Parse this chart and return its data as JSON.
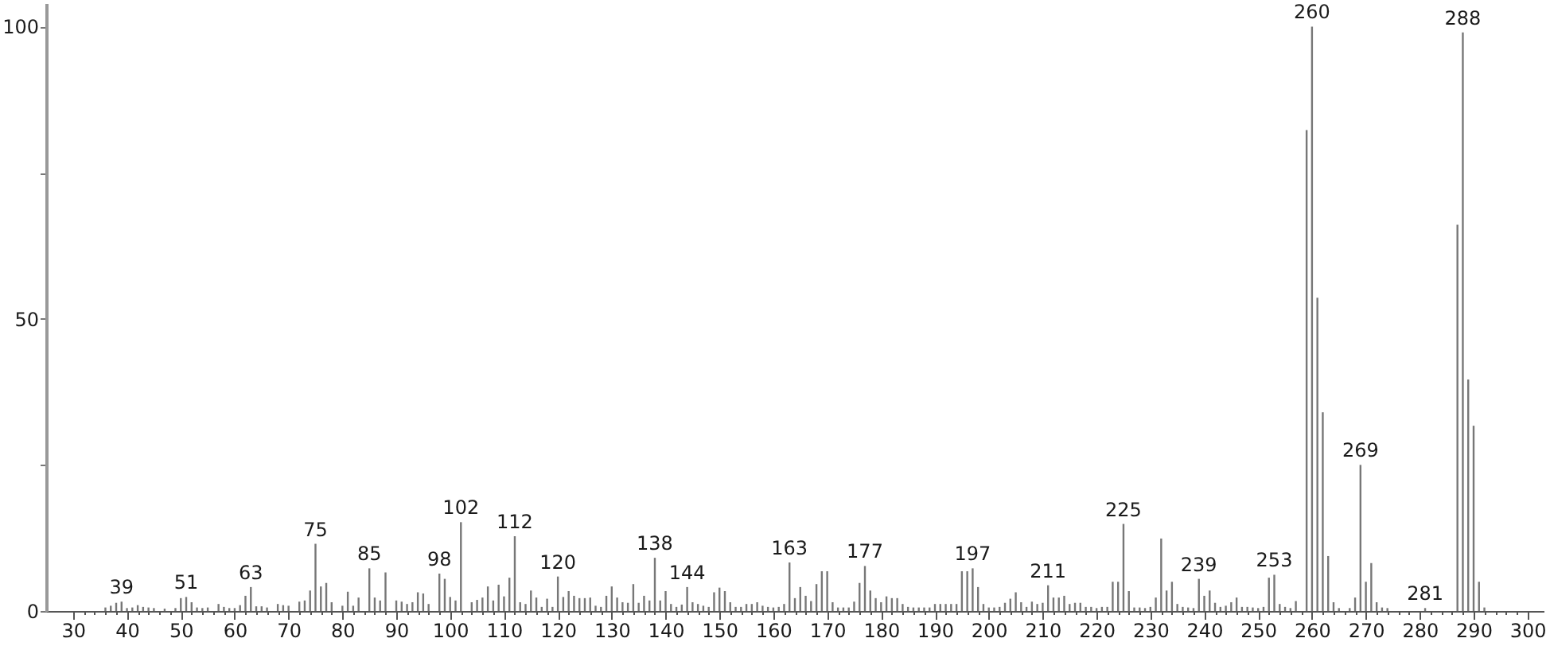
{
  "chart_data": {
    "type": "bar",
    "color": "#777777",
    "x": [
      36,
      37,
      38,
      39,
      40,
      41,
      42,
      43,
      44,
      45,
      47,
      49,
      50,
      51,
      52,
      53,
      54,
      55,
      57,
      58,
      59,
      60,
      61,
      62,
      63,
      64,
      65,
      66,
      68,
      69,
      70,
      72,
      73,
      74,
      75,
      76,
      77,
      78,
      80,
      81,
      82,
      83,
      85,
      86,
      87,
      88,
      90,
      91,
      92,
      93,
      94,
      95,
      96,
      98,
      99,
      100,
      101,
      102,
      104,
      105,
      106,
      107,
      108,
      109,
      110,
      111,
      112,
      113,
      114,
      115,
      116,
      117,
      118,
      119,
      120,
      121,
      122,
      123,
      124,
      125,
      126,
      127,
      128,
      129,
      130,
      131,
      132,
      133,
      134,
      135,
      136,
      137,
      138,
      139,
      140,
      141,
      142,
      143,
      144,
      145,
      146,
      147,
      148,
      149,
      150,
      151,
      152,
      153,
      154,
      155,
      156,
      157,
      158,
      159,
      160,
      161,
      162,
      163,
      164,
      165,
      166,
      167,
      168,
      169,
      170,
      171,
      172,
      173,
      174,
      175,
      176,
      177,
      178,
      179,
      180,
      181,
      182,
      183,
      184,
      185,
      186,
      187,
      188,
      189,
      190,
      191,
      192,
      193,
      194,
      195,
      196,
      197,
      198,
      199,
      200,
      201,
      202,
      203,
      204,
      205,
      206,
      207,
      208,
      209,
      210,
      211,
      212,
      213,
      214,
      215,
      216,
      217,
      218,
      219,
      220,
      221,
      222,
      223,
      224,
      225,
      226,
      227,
      228,
      229,
      230,
      231,
      232,
      233,
      234,
      235,
      236,
      237,
      238,
      239,
      240,
      241,
      242,
      243,
      244,
      245,
      246,
      247,
      248,
      249,
      250,
      251,
      252,
      253,
      254,
      255,
      256,
      257,
      259,
      260,
      261,
      262,
      263,
      264,
      265,
      267,
      268,
      269,
      270,
      271,
      272,
      273,
      274,
      281,
      287,
      288,
      289,
      290,
      291,
      292
    ],
    "values": [
      0.6,
      0.9,
      1.4,
      1.6,
      0.5,
      0.6,
      1.0,
      0.7,
      0.6,
      0.5,
      0.4,
      0.5,
      2.2,
      2.4,
      1.5,
      0.6,
      0.5,
      0.6,
      1.2,
      0.7,
      0.5,
      0.5,
      1.0,
      2.6,
      4.1,
      0.8,
      0.8,
      0.6,
      1.2,
      1.0,
      0.9,
      1.6,
      1.8,
      3.5,
      11.5,
      4.2,
      4.8,
      1.5,
      0.9,
      3.3,
      0.9,
      2.3,
      7.3,
      2.3,
      1.8,
      6.6,
      1.8,
      1.6,
      1.2,
      1.5,
      3.2,
      3.0,
      1.2,
      6.4,
      5.5,
      2.4,
      1.8,
      15.2,
      1.5,
      1.9,
      2.3,
      4.2,
      1.8,
      4.5,
      2.5,
      5.7,
      12.8,
      1.5,
      1.2,
      3.5,
      2.3,
      0.7,
      2.1,
      0.7,
      5.9,
      2.4,
      3.4,
      2.6,
      2.2,
      2.2,
      2.3,
      0.9,
      0.7,
      2.6,
      4.2,
      2.3,
      1.5,
      1.4,
      4.6,
      1.4,
      2.6,
      1.8,
      9.1,
      1.8,
      3.4,
      1.2,
      0.7,
      1.1,
      4.1,
      1.5,
      1.2,
      0.9,
      0.7,
      3.2,
      4.0,
      3.4,
      1.5,
      0.7,
      0.7,
      1.2,
      1.2,
      1.5,
      0.9,
      0.7,
      0.6,
      0.7,
      1.2,
      8.3,
      2.2,
      4.1,
      2.6,
      1.7,
      4.6,
      6.8,
      6.8,
      1.5,
      0.6,
      0.6,
      0.6,
      1.6,
      4.8,
      7.7,
      3.5,
      2.2,
      1.5,
      2.5,
      2.2,
      2.2,
      1.2,
      0.7,
      0.6,
      0.6,
      0.6,
      0.6,
      1.2,
      1.2,
      1.2,
      1.2,
      1.2,
      6.8,
      6.8,
      7.3,
      4.1,
      1.2,
      0.6,
      0.6,
      0.7,
      1.4,
      2.1,
      3.2,
      1.5,
      0.7,
      1.6,
      1.2,
      1.4,
      4.4,
      2.3,
      2.3,
      2.6,
      1.2,
      1.4,
      1.4,
      0.7,
      0.7,
      0.5,
      0.7,
      0.7,
      5.0,
      5.0,
      14.9,
      3.4,
      0.6,
      0.6,
      0.5,
      0.7,
      2.3,
      12.4,
      3.5,
      5.0,
      1.2,
      0.7,
      0.6,
      0.5,
      5.5,
      2.6,
      3.5,
      1.4,
      0.7,
      0.9,
      1.5,
      2.3,
      0.7,
      0.7,
      0.6,
      0.5,
      0.7,
      5.7,
      6.2,
      1.2,
      0.7,
      0.5,
      1.7,
      82.3,
      100,
      53.6,
      34.0,
      9.4,
      1.5,
      0.5,
      0.5,
      2.3,
      25.0,
      5.0,
      8.2,
      1.5,
      0.6,
      0.5,
      0.5,
      66.1,
      99.0,
      39.6,
      31.7,
      5.0,
      0.6
    ],
    "annotations": [
      {
        "text": "39",
        "x": 39,
        "y": 1.6
      },
      {
        "text": "51",
        "x": 51,
        "y": 2.4
      },
      {
        "text": "63",
        "x": 63,
        "y": 4.1
      },
      {
        "text": "75",
        "x": 75,
        "y": 11.5
      },
      {
        "text": "85",
        "x": 85,
        "y": 7.3
      },
      {
        "text": "98",
        "x": 98,
        "y": 6.4
      },
      {
        "text": "102",
        "x": 102,
        "y": 15.2
      },
      {
        "text": "112",
        "x": 112,
        "y": 12.8
      },
      {
        "text": "120",
        "x": 120,
        "y": 5.9
      },
      {
        "text": "138",
        "x": 138,
        "y": 9.1
      },
      {
        "text": "144",
        "x": 144,
        "y": 4.1
      },
      {
        "text": "163",
        "x": 163,
        "y": 8.3
      },
      {
        "text": "177",
        "x": 177,
        "y": 7.7
      },
      {
        "text": "197",
        "x": 197,
        "y": 7.3
      },
      {
        "text": "211",
        "x": 211,
        "y": 4.4
      },
      {
        "text": "225",
        "x": 225,
        "y": 14.9
      },
      {
        "text": "239",
        "x": 239,
        "y": 5.5
      },
      {
        "text": "253",
        "x": 253,
        "y": 6.2
      },
      {
        "text": "260",
        "x": 260,
        "y": 100
      },
      {
        "text": "269",
        "x": 269,
        "y": 25.0
      },
      {
        "text": "281",
        "x": 281,
        "y": 0.5
      },
      {
        "text": "288",
        "x": 288,
        "y": 99.0
      }
    ],
    "xlim": [
      25,
      303
    ],
    "ylim": [
      0,
      104
    ],
    "xticks": [
      30,
      {
        "value": 32,
        "label": null
      },
      {
        "value": 34,
        "label": null
      },
      {
        "value": 36,
        "label": null
      },
      {
        "value": 38,
        "label": null
      },
      40,
      {
        "value": 42,
        "label": null
      },
      {
        "value": 44,
        "label": null
      },
      {
        "value": 46,
        "label": null
      },
      {
        "value": 48,
        "label": null
      },
      50,
      {
        "value": 52,
        "label": null
      },
      {
        "value": 54,
        "label": null
      },
      {
        "value": 56,
        "label": null
      },
      {
        "value": 58,
        "label": null
      },
      60,
      {
        "value": 62,
        "label": null
      },
      {
        "value": 64,
        "label": null
      },
      {
        "value": 66,
        "label": null
      },
      {
        "value": 68,
        "label": null
      },
      70,
      {
        "value": 72,
        "label": null
      },
      {
        "value": 74,
        "label": null
      },
      {
        "value": 76,
        "label": null
      },
      {
        "value": 78,
        "label": null
      },
      80,
      {
        "value": 82,
        "label": null
      },
      {
        "value": 84,
        "label": null
      },
      {
        "value": 86,
        "label": null
      },
      {
        "value": 88,
        "label": null
      },
      90,
      {
        "value": 92,
        "label": null
      },
      {
        "value": 94,
        "label": null
      },
      {
        "value": 96,
        "label": null
      },
      {
        "value": 98,
        "label": null
      },
      100,
      {
        "value": 102,
        "label": null
      },
      {
        "value": 104,
        "label": null
      },
      {
        "value": 106,
        "label": null
      },
      {
        "value": 108,
        "label": null
      },
      110,
      {
        "value": 112,
        "label": null
      },
      {
        "value": 114,
        "label": null
      },
      {
        "value": 116,
        "label": null
      },
      {
        "value": 118,
        "label": null
      },
      120,
      {
        "value": 122,
        "label": null
      },
      {
        "value": 124,
        "label": null
      },
      {
        "value": 126,
        "label": null
      },
      {
        "value": 128,
        "label": null
      },
      130,
      {
        "value": 132,
        "label": null
      },
      {
        "value": 134,
        "label": null
      },
      {
        "value": 136,
        "label": null
      },
      {
        "value": 138,
        "label": null
      },
      140,
      {
        "value": 142,
        "label": null
      },
      {
        "value": 144,
        "label": null
      },
      {
        "value": 146,
        "label": null
      },
      {
        "value": 148,
        "label": null
      },
      150,
      {
        "value": 152,
        "label": null
      },
      {
        "value": 154,
        "label": null
      },
      {
        "value": 156,
        "label": null
      },
      {
        "value": 158,
        "label": null
      },
      160,
      {
        "value": 162,
        "label": null
      },
      {
        "value": 164,
        "label": null
      },
      {
        "value": 166,
        "label": null
      },
      {
        "value": 168,
        "label": null
      },
      170,
      {
        "value": 172,
        "label": null
      },
      {
        "value": 174,
        "label": null
      },
      {
        "value": 176,
        "label": null
      },
      {
        "value": 178,
        "label": null
      },
      180,
      {
        "value": 182,
        "label": null
      },
      {
        "value": 184,
        "label": null
      },
      {
        "value": 186,
        "label": null
      },
      {
        "value": 188,
        "label": null
      },
      190,
      {
        "value": 192,
        "label": null
      },
      {
        "value": 194,
        "label": null
      },
      {
        "value": 196,
        "label": null
      },
      {
        "value": 198,
        "label": null
      },
      200,
      {
        "value": 202,
        "label": null
      },
      {
        "value": 204,
        "label": null
      },
      {
        "value": 206,
        "label": null
      },
      {
        "value": 208,
        "label": null
      },
      210,
      {
        "value": 212,
        "label": null
      },
      {
        "value": 214,
        "label": null
      },
      {
        "value": 216,
        "label": null
      },
      {
        "value": 218,
        "label": null
      },
      220,
      {
        "value": 222,
        "label": null
      },
      {
        "value": 224,
        "label": null
      },
      {
        "value": 226,
        "label": null
      },
      {
        "value": 228,
        "label": null
      },
      230,
      {
        "value": 232,
        "label": null
      },
      {
        "value": 234,
        "label": null
      },
      {
        "value": 236,
        "label": null
      },
      {
        "value": 238,
        "label": null
      },
      240,
      {
        "value": 242,
        "label": null
      },
      {
        "value": 244,
        "label": null
      },
      {
        "value": 246,
        "label": null
      },
      {
        "value": 248,
        "label": null
      },
      250,
      {
        "value": 252,
        "label": null
      },
      {
        "value": 254,
        "label": null
      },
      {
        "value": 256,
        "label": null
      },
      {
        "value": 258,
        "label": null
      },
      260,
      {
        "value": 262,
        "label": null
      },
      {
        "value": 264,
        "label": null
      },
      {
        "value": 266,
        "label": null
      },
      {
        "value": 268,
        "label": null
      },
      270,
      {
        "value": 272,
        "label": null
      },
      {
        "value": 274,
        "label": null
      },
      {
        "value": 276,
        "label": null
      },
      {
        "value": 278,
        "label": null
      },
      280,
      {
        "value": 282,
        "label": null
      },
      {
        "value": 284,
        "label": null
      },
      {
        "value": 286,
        "label": null
      },
      {
        "value": 288,
        "label": null
      },
      290,
      {
        "value": 292,
        "label": null
      },
      {
        "value": 294,
        "label": null
      },
      {
        "value": 296,
        "label": null
      },
      {
        "value": 298,
        "label": null
      },
      300
    ],
    "yticks": [
      0,
      {
        "value": 25,
        "label": null
      },
      50,
      {
        "value": 75,
        "label": null
      },
      100
    ]
  }
}
